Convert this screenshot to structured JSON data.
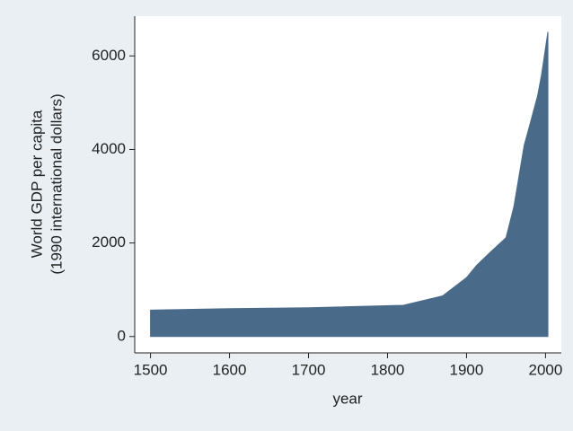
{
  "chart_data": {
    "type": "area",
    "xlabel": "year",
    "ylabel": [
      "World GDP per capita",
      "(1990 international dollars)"
    ],
    "x": [
      1500,
      1600,
      1700,
      1820,
      1870,
      1900,
      1913,
      1930,
      1950,
      1960,
      1973,
      1980,
      1990,
      1995,
      2003
    ],
    "values": [
      565,
      595,
      615,
      667,
      870,
      1260,
      1526,
      1800,
      2113,
      2780,
      4091,
      4520,
      5150,
      5600,
      6516
    ],
    "color": "#4a6a8a",
    "xlim": [
      1480,
      2020
    ],
    "xticks": [
      1500,
      1600,
      1700,
      1800,
      1900,
      2000
    ],
    "ylim": [
      -350,
      6850
    ],
    "yticks": [
      0,
      2000,
      4000,
      6000
    ]
  }
}
